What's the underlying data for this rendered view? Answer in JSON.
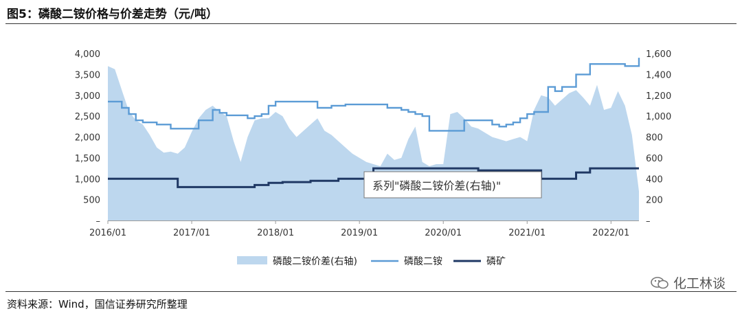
{
  "title": "图5：磷酸二铵价格与价差走势（元/吨）",
  "source": "资料来源：Wind，国信证券研究所整理",
  "watermark": "化工林谈",
  "tooltip": "系列\"磷酸二铵价差(右轴)\"",
  "chart_data": {
    "type": "line",
    "x_ticks": [
      "2016/01",
      "2017/01",
      "2018/01",
      "2019/01",
      "2020/01",
      "2021/01",
      "2022/01"
    ],
    "x_range": [
      "2016/01",
      "2022/05"
    ],
    "y_left": {
      "ticks": [
        "–",
        "500",
        "1,000",
        "1,500",
        "2,000",
        "2,500",
        "3,000",
        "3,500",
        "4,000"
      ],
      "range": [
        0,
        4000
      ]
    },
    "y_right": {
      "ticks": [
        "–",
        "200",
        "400",
        "600",
        "800",
        "1,000",
        "1,200",
        "1,400",
        "1,600"
      ],
      "range": [
        0,
        1600
      ]
    },
    "legend": {
      "position": "bottom",
      "labels": [
        "磷酸二铵价差(右轴)",
        "磷酸二铵",
        "磷矿"
      ]
    },
    "colors": {
      "spread": "#bdd7ee",
      "dap": "#5b9bd5",
      "rock": "#1f3864"
    },
    "series": [
      {
        "name": "磷酸二铵价差(右轴)",
        "type": "area",
        "axis": "right",
        "x": [
          "2016/01",
          "2016/02",
          "2016/03",
          "2016/04",
          "2016/05",
          "2016/06",
          "2016/07",
          "2016/08",
          "2016/09",
          "2016/10",
          "2016/11",
          "2016/12",
          "2017/01",
          "2017/02",
          "2017/03",
          "2017/04",
          "2017/05",
          "2017/06",
          "2017/07",
          "2017/08",
          "2017/09",
          "2017/10",
          "2017/11",
          "2017/12",
          "2018/01",
          "2018/02",
          "2018/03",
          "2018/04",
          "2018/05",
          "2018/06",
          "2018/07",
          "2018/08",
          "2018/09",
          "2018/10",
          "2018/11",
          "2018/12",
          "2019/01",
          "2019/02",
          "2019/03",
          "2019/04",
          "2019/05",
          "2019/06",
          "2019/07",
          "2019/08",
          "2019/09",
          "2019/10",
          "2019/11",
          "2019/12",
          "2020/01",
          "2020/02",
          "2020/03",
          "2020/04",
          "2020/05",
          "2020/06",
          "2020/07",
          "2020/08",
          "2020/09",
          "2020/10",
          "2020/11",
          "2020/12",
          "2021/01",
          "2021/02",
          "2021/03",
          "2021/04",
          "2021/05",
          "2021/06",
          "2021/07",
          "2021/08",
          "2021/09",
          "2021/10",
          "2021/11",
          "2021/12",
          "2022/01",
          "2022/02",
          "2022/03",
          "2022/04",
          "2022/05"
        ],
        "values": [
          1480,
          1450,
          1250,
          1050,
          960,
          920,
          820,
          700,
          650,
          660,
          640,
          700,
          850,
          980,
          1060,
          1100,
          1040,
          1000,
          760,
          560,
          800,
          960,
          980,
          980,
          1040,
          1000,
          880,
          800,
          860,
          920,
          980,
          860,
          820,
          760,
          700,
          640,
          600,
          560,
          540,
          520,
          640,
          580,
          600,
          780,
          900,
          560,
          520,
          540,
          540,
          1020,
          1040,
          980,
          900,
          880,
          840,
          800,
          780,
          760,
          780,
          800,
          760,
          1060,
          1200,
          1180,
          1100,
          1160,
          1220,
          1250,
          1180,
          1100,
          1300,
          1060,
          1080,
          1240,
          1100,
          820,
          280
        ]
      },
      {
        "name": "磷酸二铵",
        "type": "line",
        "axis": "left",
        "x": [
          "2016/01",
          "2016/03",
          "2016/04",
          "2016/05",
          "2016/06",
          "2016/08",
          "2016/10",
          "2016/12",
          "2017/02",
          "2017/04",
          "2017/05",
          "2017/06",
          "2017/09",
          "2017/10",
          "2017/11",
          "2017/12",
          "2018/01",
          "2018/05",
          "2018/07",
          "2018/09",
          "2018/11",
          "2019/01",
          "2019/04",
          "2019/05",
          "2019/07",
          "2019/08",
          "2019/09",
          "2019/10",
          "2019/11",
          "2020/01",
          "2020/04",
          "2020/06",
          "2020/08",
          "2020/09",
          "2020/10",
          "2020/11",
          "2020/12",
          "2021/01",
          "2021/02",
          "2021/04",
          "2021/05",
          "2021/06",
          "2021/08",
          "2021/09",
          "2021/10",
          "2022/03",
          "2022/04",
          "2022/05"
        ],
        "values": [
          2850,
          2700,
          2550,
          2400,
          2350,
          2300,
          2200,
          2200,
          2400,
          2650,
          2580,
          2520,
          2450,
          2500,
          2550,
          2750,
          2850,
          2850,
          2700,
          2750,
          2780,
          2780,
          2780,
          2700,
          2650,
          2600,
          2550,
          2500,
          2150,
          2150,
          2400,
          2400,
          2300,
          2250,
          2300,
          2350,
          2450,
          2550,
          2600,
          3200,
          3100,
          3200,
          3500,
          3500,
          3750,
          3700,
          3700,
          3900
        ]
      },
      {
        "name": "磷矿",
        "type": "line",
        "axis": "left",
        "x": [
          "2016/01",
          "2016/11",
          "2017/01",
          "2017/06",
          "2017/09",
          "2017/10",
          "2017/12",
          "2018/02",
          "2018/06",
          "2018/10",
          "2019/01",
          "2019/03",
          "2019/06",
          "2019/09",
          "2020/03",
          "2020/06",
          "2020/09",
          "2020/12",
          "2021/03",
          "2021/06",
          "2021/08",
          "2021/09",
          "2021/10",
          "2022/05"
        ],
        "values": [
          1000,
          800,
          800,
          800,
          800,
          850,
          900,
          920,
          950,
          1000,
          1000,
          1250,
          1250,
          1250,
          1250,
          1200,
          1200,
          1200,
          1000,
          1000,
          1150,
          1150,
          1250,
          1250
        ]
      }
    ]
  }
}
